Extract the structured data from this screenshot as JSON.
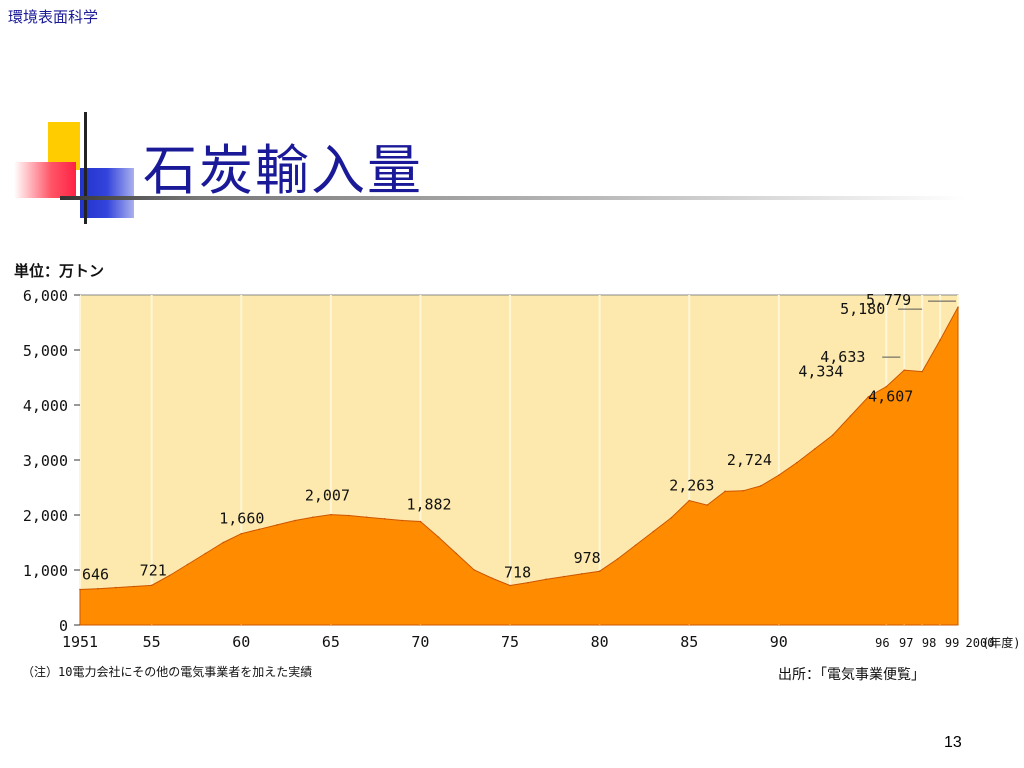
{
  "header": {
    "label": "環境表面科学"
  },
  "slide": {
    "title": "石炭輸入量",
    "page_number": "13"
  },
  "colors": {
    "background": "#fde9ad",
    "fill": "#ff8c00",
    "title": "#1a1a99",
    "gridline": "#fff6d8"
  },
  "chart_data": {
    "type": "area",
    "title": "",
    "unit_label": "単位：万トン",
    "xlabel": "",
    "ylabel": "",
    "xlim": [
      1951,
      2000
    ],
    "ylim": [
      0,
      6000
    ],
    "grid": true,
    "y_ticks": [
      {
        "value": 0,
        "label": "0"
      },
      {
        "value": 1000,
        "label": "1,000"
      },
      {
        "value": 2000,
        "label": "2,000"
      },
      {
        "value": 3000,
        "label": "3,000"
      },
      {
        "value": 4000,
        "label": "4,000"
      },
      {
        "value": 5000,
        "label": "5,000"
      },
      {
        "value": 6000,
        "label": "6,000"
      }
    ],
    "x_ticks": [
      {
        "value": 1951,
        "label": "1951"
      },
      {
        "value": 1955,
        "label": "55"
      },
      {
        "value": 1960,
        "label": "60"
      },
      {
        "value": 1965,
        "label": "65"
      },
      {
        "value": 1970,
        "label": "70"
      },
      {
        "value": 1975,
        "label": "75"
      },
      {
        "value": 1980,
        "label": "80"
      },
      {
        "value": 1985,
        "label": "85"
      },
      {
        "value": 1990,
        "label": "90"
      },
      {
        "value": 1996,
        "label": "96"
      },
      {
        "value": 1997,
        "label": "97"
      },
      {
        "value": 1998,
        "label": "98"
      },
      {
        "value": 1999,
        "label": "99"
      },
      {
        "value": 2000,
        "label": "2000"
      }
    ],
    "x_unit_label": "(年度)",
    "series": [
      {
        "x": [
          1951,
          1952,
          1953,
          1954,
          1955,
          1956,
          1957,
          1958,
          1959,
          1960,
          1961,
          1962,
          1963,
          1964,
          1965,
          1966,
          1967,
          1968,
          1969,
          1970,
          1971,
          1972,
          1973,
          1974,
          1975,
          1976,
          1977,
          1978,
          1979,
          1980,
          1981,
          1982,
          1983,
          1984,
          1985,
          1986,
          1987,
          1988,
          1989,
          1990,
          1991,
          1992,
          1993,
          1994,
          1995,
          1996,
          1997,
          1998,
          1999,
          2000
        ],
        "y": [
          646,
          660,
          680,
          700,
          721,
          900,
          1100,
          1300,
          1500,
          1660,
          1740,
          1820,
          1900,
          1960,
          2007,
          1990,
          1960,
          1930,
          1900,
          1882,
          1600,
          1300,
          1000,
          850,
          718,
          770,
          830,
          880,
          930,
          978,
          1200,
          1450,
          1700,
          1950,
          2263,
          2180,
          2430,
          2440,
          2530,
          2724,
          2950,
          3200,
          3450,
          3800,
          4150,
          4334,
          4633,
          4607,
          5180,
          5779
        ]
      }
    ],
    "data_labels": [
      {
        "x": 1951,
        "y": 646,
        "label": "646"
      },
      {
        "x": 1955,
        "y": 721,
        "label": "721"
      },
      {
        "x": 1960,
        "y": 1660,
        "label": "1,660"
      },
      {
        "x": 1965,
        "y": 2007,
        "label": "2,007"
      },
      {
        "x": 1970,
        "y": 1882,
        "label": "1,882"
      },
      {
        "x": 1975,
        "y": 718,
        "label": "718"
      },
      {
        "x": 1980,
        "y": 978,
        "label": "978"
      },
      {
        "x": 1985,
        "y": 2263,
        "label": "2,263"
      },
      {
        "x": 1990,
        "y": 2724,
        "label": "2,724"
      },
      {
        "x": 1996,
        "y": 4334,
        "label": "4,334"
      },
      {
        "x": 1997,
        "y": 4633,
        "label": "4,633"
      },
      {
        "x": 1998,
        "y": 4607,
        "label": "4,607"
      },
      {
        "x": 1999,
        "y": 5180,
        "label": "5,180"
      },
      {
        "x": 2000,
        "y": 5779,
        "label": "5,779"
      }
    ],
    "note": "（注）10電力会社にその他の電気事業者を加えた実績",
    "source": "出所：「電気事業便覧」"
  }
}
